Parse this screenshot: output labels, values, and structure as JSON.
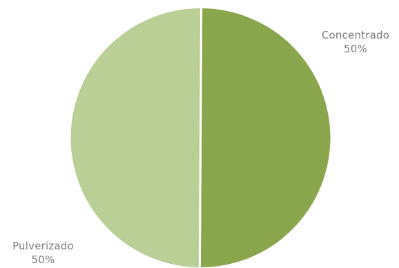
{
  "chart_data": {
    "type": "pie",
    "title": "",
    "slices": [
      {
        "name": "Concentrado",
        "value": 50,
        "percent_label": "50%",
        "color": "#8aa64d"
      },
      {
        "name": "Pulverizado",
        "value": 50,
        "percent_label": "50%",
        "color": "#b9cf96"
      }
    ],
    "separator_color": "#ffffff",
    "legend": "none",
    "data_labels": "outside"
  }
}
